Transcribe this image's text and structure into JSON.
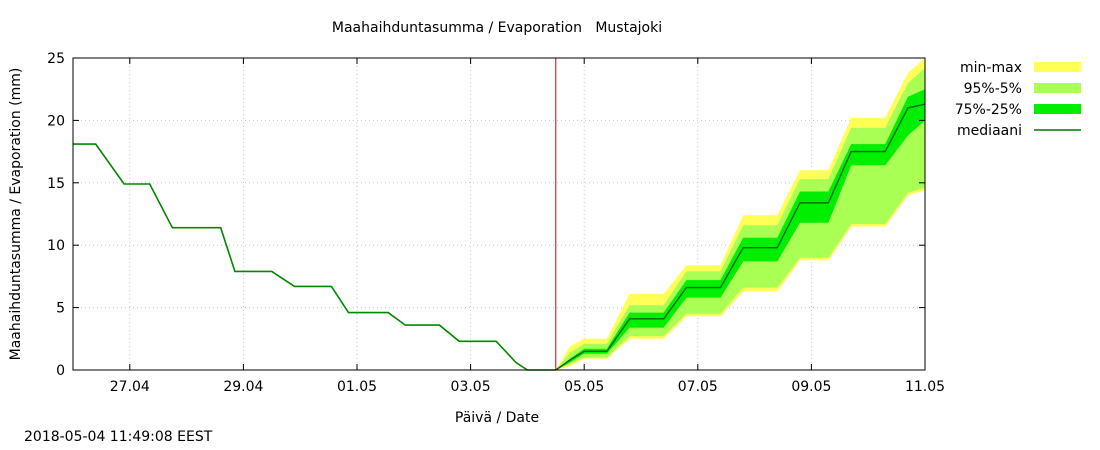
{
  "chart_data": {
    "type": "area",
    "title": "Maahaihduntasumma / Evaporation   Mustajoki",
    "xlabel": "Päivä / Date",
    "ylabel": "Maahaihduntasumma / Evaporation (mm)",
    "ylim": [
      0,
      25
    ],
    "yticks": [
      0,
      5,
      10,
      15,
      20,
      25
    ],
    "xlim_days": [
      0,
      15
    ],
    "xticks": [
      {
        "day": 1,
        "label": "27.04"
      },
      {
        "day": 3,
        "label": "29.04"
      },
      {
        "day": 5,
        "label": "01.05"
      },
      {
        "day": 7,
        "label": "03.05"
      },
      {
        "day": 9,
        "label": "05.05"
      },
      {
        "day": 11,
        "label": "07.05"
      },
      {
        "day": 13,
        "label": "09.05"
      },
      {
        "day": 15,
        "label": "11.05"
      }
    ],
    "forecast_start_day": 8.5,
    "observed": {
      "name": "observed",
      "x": [
        0,
        0.4,
        0.9,
        1.35,
        1.75,
        2.6,
        2.85,
        3.5,
        3.9,
        4.55,
        4.85,
        5.55,
        5.85,
        6.45,
        6.8,
        7.45,
        7.8,
        8.0,
        8.5
      ],
      "y": [
        18.1,
        18.1,
        14.9,
        14.9,
        11.4,
        11.4,
        7.9,
        7.9,
        6.7,
        6.7,
        4.6,
        4.6,
        3.6,
        3.6,
        2.3,
        2.3,
        0.6,
        0.0,
        0.0
      ]
    },
    "forecast": {
      "x": [
        8.5,
        8.75,
        9.0,
        9.4,
        9.8,
        10.4,
        10.8,
        11.4,
        11.8,
        12.4,
        12.8,
        13.3,
        13.7,
        14.3,
        14.7,
        15.0
      ],
      "median": [
        0,
        0.8,
        1.5,
        1.5,
        4.1,
        4.1,
        6.6,
        6.6,
        9.8,
        9.8,
        13.4,
        13.4,
        17.5,
        17.5,
        21.0,
        21.3
      ],
      "p25": [
        0,
        0.6,
        1.3,
        1.3,
        3.4,
        3.4,
        5.8,
        5.8,
        8.7,
        8.7,
        11.8,
        11.8,
        16.4,
        16.4,
        18.8,
        20.0
      ],
      "p75": [
        0,
        0.9,
        1.7,
        1.7,
        4.6,
        4.6,
        7.2,
        7.2,
        10.6,
        10.6,
        14.3,
        14.3,
        18.1,
        18.1,
        21.9,
        22.5
      ],
      "p5": [
        0,
        0.5,
        1.0,
        1.0,
        2.7,
        2.7,
        4.5,
        4.5,
        6.6,
        6.6,
        9.0,
        9.0,
        11.7,
        11.7,
        14.2,
        14.6
      ],
      "p95": [
        0,
        1.4,
        2.1,
        2.1,
        5.2,
        5.2,
        7.9,
        7.9,
        11.6,
        11.6,
        15.3,
        15.3,
        19.4,
        19.4,
        23.0,
        24.2
      ],
      "min": [
        0,
        0.3,
        0.9,
        0.9,
        2.5,
        2.5,
        4.3,
        4.3,
        6.3,
        6.3,
        8.8,
        8.8,
        11.5,
        11.5,
        14.0,
        14.4
      ],
      "max": [
        0,
        1.9,
        2.5,
        2.5,
        6.1,
        6.1,
        8.4,
        8.4,
        12.4,
        12.4,
        16.0,
        16.0,
        20.2,
        20.2,
        23.8,
        25.0
      ]
    },
    "legend": [
      {
        "label": "min-max",
        "color": "#ffff55",
        "kind": "band"
      },
      {
        "label": "95%-5%",
        "color": "#aaff55",
        "kind": "band"
      },
      {
        "label": "75%-25%",
        "color": "#00ee00",
        "kind": "band"
      },
      {
        "label": "mediaani",
        "color": "#007700",
        "kind": "line"
      }
    ],
    "colors": {
      "observed_line": "#008800",
      "median_line": "#006600",
      "forecast_marker": "#cc0000",
      "grid": "#c8c8c8"
    }
  },
  "timestamp": "2018-05-04 11:49:08 EEST"
}
